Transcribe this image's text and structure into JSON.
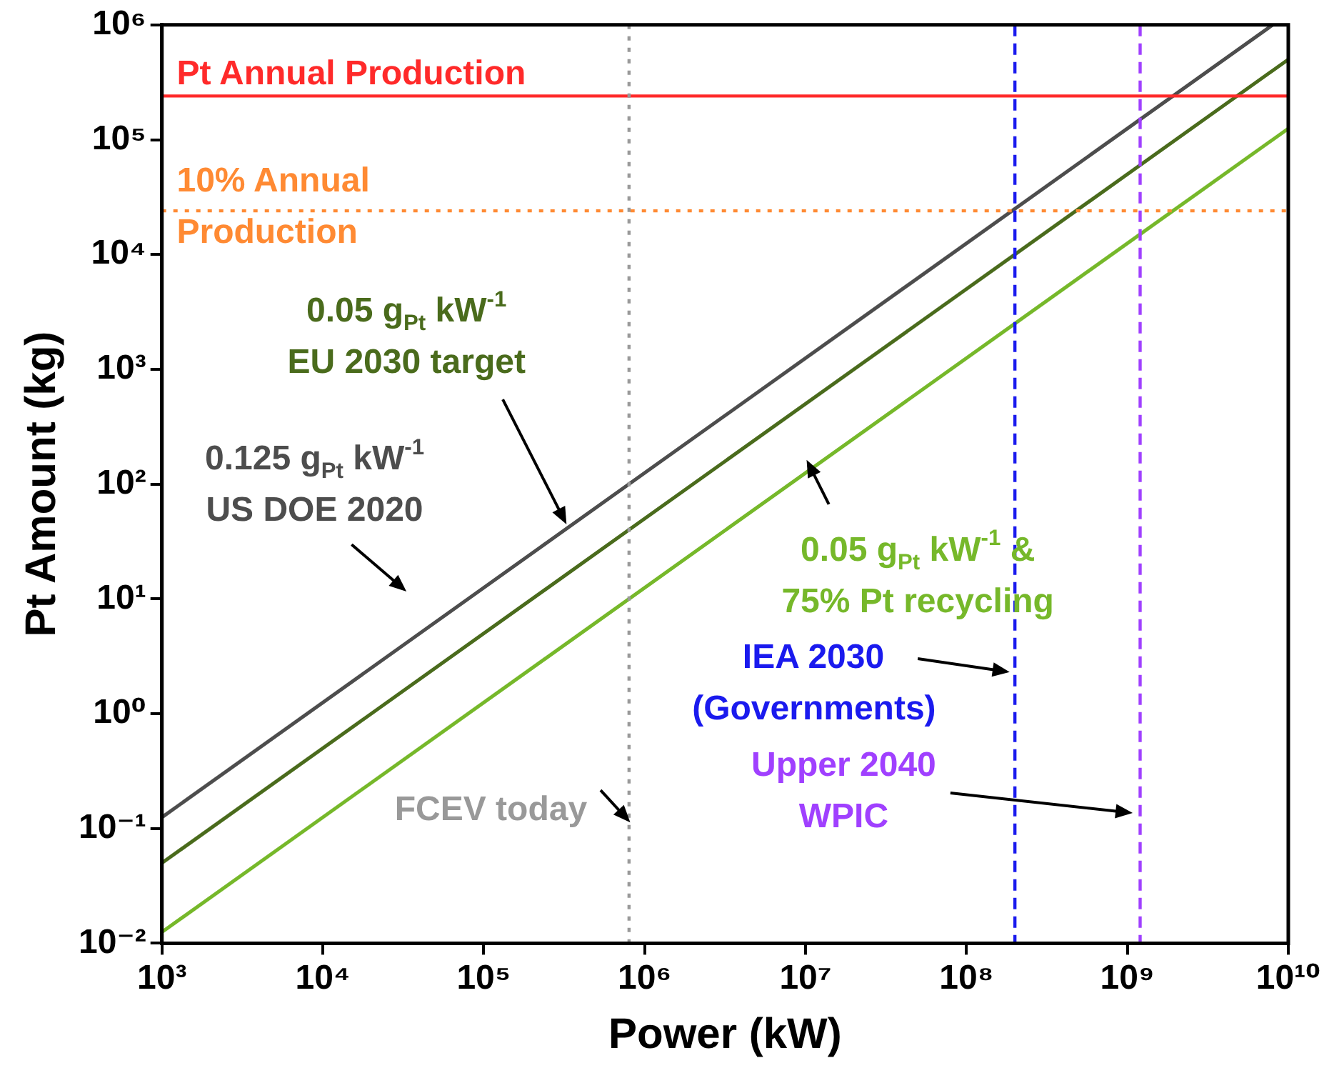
{
  "chart_data": {
    "type": "line",
    "xlabel": "Power (kW)",
    "ylabel": "Pt Amount (kg)",
    "log": "xy",
    "grid": false,
    "legend": false,
    "marker": "none",
    "line_style": "solid",
    "xlim": [
      1000,
      10000000000
    ],
    "ylim": [
      0.01,
      1000000
    ],
    "xticks": [
      {
        "value": 1000,
        "label": "10³"
      },
      {
        "value": 10000,
        "label": "10⁴"
      },
      {
        "value": 100000,
        "label": "10⁵"
      },
      {
        "value": 1000000,
        "label": "10⁶"
      },
      {
        "value": 10000000,
        "label": "10⁷"
      },
      {
        "value": 100000000,
        "label": "10⁸"
      },
      {
        "value": 1000000000,
        "label": "10⁹"
      },
      {
        "value": 10000000000,
        "label": "10¹⁰"
      }
    ],
    "yticks": [
      {
        "value": 0.01,
        "label": "10⁻²"
      },
      {
        "value": 0.1,
        "label": "10⁻¹"
      },
      {
        "value": 1,
        "label": "10⁰"
      },
      {
        "value": 10,
        "label": "10¹"
      },
      {
        "value": 100,
        "label": "10²"
      },
      {
        "value": 1000,
        "label": "10³"
      },
      {
        "value": 10000,
        "label": "10⁴"
      },
      {
        "value": 100000,
        "label": "10⁵"
      },
      {
        "value": 1000000,
        "label": "10⁶"
      }
    ],
    "series": [
      {
        "name": "0.125 g$_{Pt}$ kW$^{-1}$\nUS DOE 2020",
        "color": "#4d4d4d",
        "x": [
          1000,
          8000000000
        ],
        "values": [
          0.125,
          1000000
        ]
      },
      {
        "name": "0.05 g$_{Pt}$ kW$^{-1}$\nEU 2030 target",
        "color": "#4a6b1c",
        "x": [
          1000,
          10000000000
        ],
        "values": [
          0.05,
          500000
        ]
      },
      {
        "name": "0.05 g$_{Pt}$ kW$^{-1}$ &\n75% Pt recycling",
        "color": "#76b82a",
        "x": [
          1000,
          10000000000
        ],
        "values": [
          0.0125,
          125000
        ]
      }
    ],
    "ref_lines": [
      {
        "axis": "y",
        "value": 240000,
        "label": "Pt Annual Production",
        "color": "#ff2a2a",
        "line_style": "solid"
      },
      {
        "axis": "y",
        "value": 24000,
        "label": "10% Annual\nProduction",
        "color": "#ff8a33",
        "line_style": "dotted"
      },
      {
        "axis": "x",
        "value": 800000,
        "label": "FCEV today",
        "color": "#999999",
        "line_style": "dotted"
      },
      {
        "axis": "x",
        "value": 200000000,
        "label": "IEA 2030\n(Governments)",
        "color": "#1a1aee",
        "line_style": "dashed"
      },
      {
        "axis": "x",
        "value": 1200000000,
        "label": "Upper 2040\nWPIC",
        "color": "#a040ff",
        "line_style": "dashed"
      }
    ]
  }
}
